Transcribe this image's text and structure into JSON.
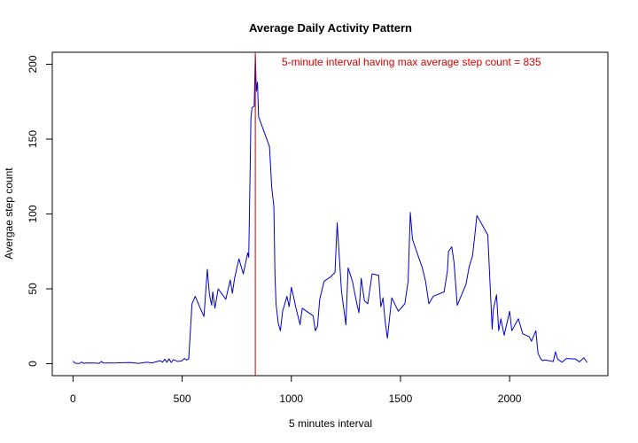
{
  "chart_data": {
    "type": "line",
    "title": "Average Daily Activity Pattern",
    "xlabel": "5 minutes interval",
    "ylabel": "Avergae step count",
    "xlim": [
      -95,
      2450
    ],
    "ylim": [
      -8,
      208
    ],
    "xticks": [
      0,
      500,
      1000,
      1500,
      2000
    ],
    "yticks": [
      0,
      50,
      100,
      150,
      200
    ],
    "xtick_labels": [
      "0",
      "500",
      "1000",
      "1500",
      "2000"
    ],
    "ytick_labels": [
      "0",
      "50",
      "100",
      "150",
      "200"
    ],
    "grid": false,
    "line_color": "#0000cc",
    "vline": {
      "x": 835,
      "color": "#cc0000"
    },
    "annotation": {
      "text": "5-minute interval having max average step count =  835",
      "color": "#dd0000",
      "x": 1550,
      "y": 199
    },
    "series": [
      {
        "x": [
          0,
          10,
          20,
          30,
          40,
          50,
          60,
          100,
          120,
          130,
          140,
          200,
          260,
          300,
          340,
          360,
          400,
          410,
          420,
          430,
          440,
          450,
          460,
          480,
          500,
          510,
          520,
          530,
          545,
          560,
          580,
          600,
          615,
          625,
          635,
          640,
          650,
          665,
          680,
          700,
          720,
          730,
          740,
          760,
          780,
          800,
          805,
          815,
          820,
          830,
          835,
          840,
          845,
          850,
          900,
          910,
          920,
          925,
          930,
          940,
          950,
          960,
          980,
          990,
          1000,
          1010,
          1020,
          1030,
          1040,
          1050,
          1100,
          1110,
          1120,
          1130,
          1150,
          1180,
          1200,
          1210,
          1230,
          1250,
          1260,
          1280,
          1300,
          1310,
          1320,
          1335,
          1350,
          1370,
          1400,
          1410,
          1420,
          1430,
          1440,
          1460,
          1470,
          1490,
          1520,
          1535,
          1545,
          1555,
          1600,
          1615,
          1630,
          1650,
          1700,
          1715,
          1720,
          1735,
          1745,
          1760,
          1800,
          1815,
          1830,
          1840,
          1850,
          1900,
          1920,
          1925,
          1940,
          1950,
          1960,
          1975,
          2000,
          2010,
          2040,
          2060,
          2090,
          2100,
          2120,
          2130,
          2140,
          2150,
          2160,
          2200,
          2210,
          2220,
          2240,
          2260,
          2300,
          2320,
          2340,
          2355
        ],
        "values": [
          1.7,
          0.3,
          0.1,
          0.2,
          1.1,
          0.2,
          0.5,
          0.4,
          0.2,
          1.5,
          0.4,
          0.5,
          0.8,
          0.2,
          1.0,
          0.5,
          2.0,
          1.0,
          3.0,
          1.0,
          3.2,
          0.8,
          2.7,
          1.5,
          2.0,
          3.5,
          2.5,
          3.2,
          40.0,
          45.0,
          38.0,
          31.5,
          63.0,
          46.0,
          39.0,
          48.0,
          37.0,
          50.0,
          47.0,
          43.0,
          56.0,
          47.0,
          57.0,
          70.0,
          60.0,
          74.0,
          71.0,
          164.0,
          171.0,
          172.0,
          206.0,
          182.0,
          188.0,
          165.0,
          145.0,
          118.0,
          105.0,
          60.0,
          40.0,
          27.0,
          22.0,
          35.0,
          45.0,
          38.0,
          51.0,
          45.0,
          38.0,
          32.0,
          26.0,
          37.0,
          32.0,
          22.0,
          25.0,
          43.0,
          55.0,
          58.0,
          61.0,
          94.0,
          48.0,
          26.0,
          64.0,
          55.0,
          40.0,
          34.0,
          57.0,
          42.0,
          40.0,
          60.0,
          59.0,
          38.0,
          44.0,
          28.0,
          17.0,
          44.0,
          41.0,
          35.0,
          40.0,
          55.0,
          101.0,
          83.0,
          64.0,
          55.0,
          40.0,
          45.0,
          48.0,
          62.0,
          75.0,
          78.0,
          68.0,
          39.0,
          53.0,
          65.0,
          72.0,
          85.0,
          99.0,
          86.0,
          23.0,
          36.0,
          46.0,
          22.0,
          30.0,
          19.0,
          35.0,
          22.0,
          30.0,
          20.0,
          18.0,
          15.0,
          22.0,
          7.0,
          3.8,
          2.0,
          2.5,
          1.5,
          8.0,
          3.0,
          1.0,
          3.5,
          3.2,
          1.2,
          4.0,
          0.8
        ]
      }
    ]
  }
}
